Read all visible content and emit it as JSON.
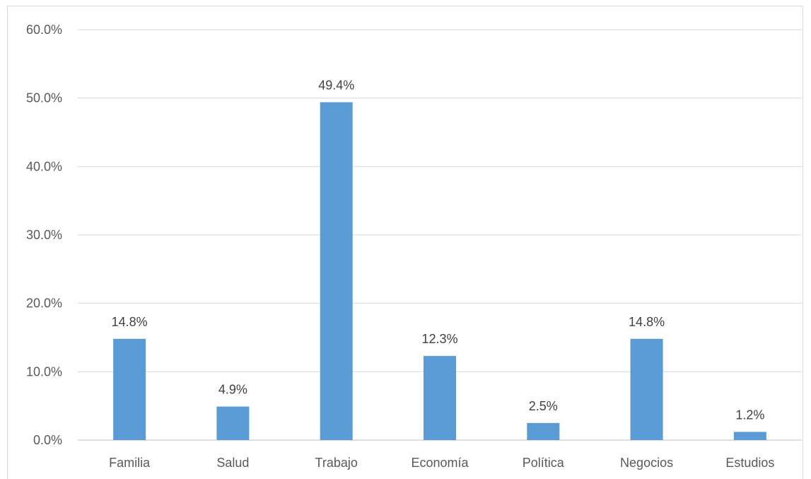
{
  "chart_data": {
    "type": "bar",
    "categories": [
      "Familia",
      "Salud",
      "Trabajo",
      "Economía",
      "Política",
      "Negocios",
      "Estudios"
    ],
    "values": [
      14.8,
      4.9,
      49.4,
      12.3,
      2.5,
      14.8,
      1.2
    ],
    "data_labels": [
      "14.8%",
      "4.9%",
      "49.4%",
      "12.3%",
      "2.5%",
      "14.8%",
      "1.2%"
    ],
    "y_ticks": [
      "0.0%",
      "10.0%",
      "20.0%",
      "30.0%",
      "40.0%",
      "50.0%",
      "60.0%"
    ],
    "ylim": [
      0,
      60
    ],
    "grid": true,
    "bar_color": "#5b9bd5",
    "grid_color": "#d9d9d9",
    "title": "",
    "xlabel": "",
    "ylabel": ""
  }
}
